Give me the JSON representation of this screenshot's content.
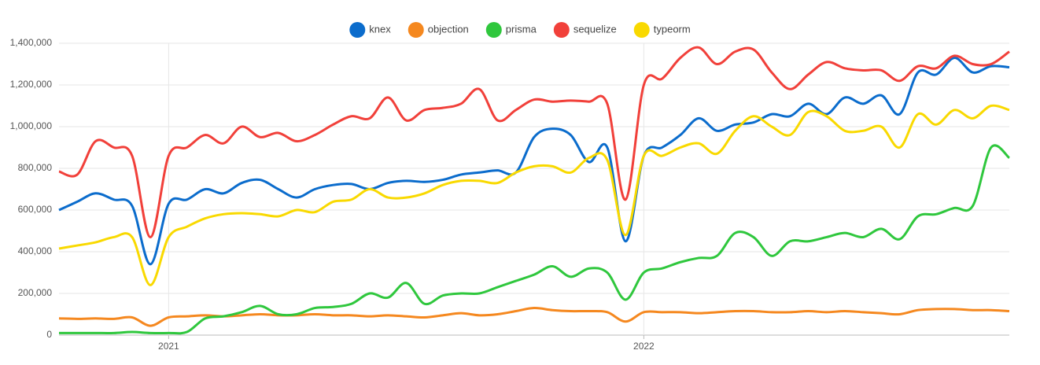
{
  "chart_data": {
    "type": "line",
    "categories": [
      null,
      null,
      null,
      null,
      null,
      null,
      "2021",
      null,
      null,
      null,
      null,
      null,
      null,
      null,
      null,
      null,
      null,
      null,
      null,
      null,
      null,
      null,
      null,
      null,
      null,
      null,
      null,
      null,
      null,
      null,
      null,
      null,
      "2022",
      null,
      null,
      null,
      null,
      null,
      null,
      null,
      null,
      null,
      null,
      null,
      null,
      null,
      null,
      null,
      null,
      null,
      null,
      null,
      null
    ],
    "series": [
      {
        "name": "knex",
        "color": "#0b6ccc",
        "values": [
          600,
          640,
          680,
          650,
          620,
          340,
          630,
          650,
          700,
          680,
          730,
          745,
          700,
          660,
          700,
          720,
          725,
          700,
          730,
          740,
          735,
          745,
          770,
          780,
          790,
          780,
          950,
          990,
          960,
          830,
          900,
          450,
          860,
          900,
          960,
          1040,
          980,
          1010,
          1020,
          1060,
          1050,
          1110,
          1060,
          1140,
          1110,
          1150,
          1060,
          1260,
          1250,
          1330,
          1260,
          1290,
          1285
        ]
      },
      {
        "name": "objection",
        "color": "#f5881f",
        "values": [
          80,
          78,
          80,
          78,
          85,
          45,
          85,
          90,
          95,
          90,
          95,
          100,
          95,
          95,
          100,
          95,
          95,
          90,
          95,
          90,
          85,
          95,
          105,
          95,
          100,
          115,
          130,
          120,
          115,
          115,
          110,
          65,
          110,
          110,
          110,
          105,
          110,
          115,
          115,
          110,
          110,
          115,
          110,
          115,
          110,
          105,
          100,
          120,
          125,
          125,
          120,
          120,
          115
        ]
      },
      {
        "name": "prisma",
        "color": "#2fc73d",
        "values": [
          10,
          10,
          10,
          10,
          15,
          10,
          10,
          15,
          80,
          90,
          110,
          140,
          100,
          100,
          130,
          135,
          150,
          200,
          180,
          250,
          150,
          190,
          200,
          200,
          230,
          260,
          290,
          330,
          280,
          320,
          300,
          170,
          300,
          320,
          350,
          370,
          380,
          490,
          470,
          380,
          450,
          450,
          470,
          490,
          470,
          510,
          460,
          570,
          580,
          610,
          620,
          900,
          850
        ]
      },
      {
        "name": "sequelize",
        "color": "#f1403a",
        "values": [
          785,
          770,
          930,
          900,
          860,
          470,
          860,
          900,
          960,
          920,
          1000,
          950,
          970,
          930,
          960,
          1010,
          1050,
          1040,
          1140,
          1030,
          1080,
          1090,
          1110,
          1180,
          1030,
          1080,
          1130,
          1120,
          1125,
          1120,
          1110,
          650,
          1200,
          1230,
          1330,
          1380,
          1300,
          1360,
          1370,
          1260,
          1180,
          1250,
          1310,
          1280,
          1270,
          1270,
          1220,
          1290,
          1280,
          1340,
          1300,
          1300,
          1360
        ]
      },
      {
        "name": "typeorm",
        "color": "#f9d900",
        "values": [
          415,
          430,
          445,
          470,
          470,
          240,
          470,
          520,
          560,
          580,
          585,
          580,
          570,
          600,
          590,
          640,
          650,
          700,
          660,
          660,
          680,
          720,
          740,
          740,
          730,
          780,
          810,
          810,
          780,
          850,
          840,
          480,
          860,
          860,
          900,
          920,
          870,
          980,
          1050,
          1000,
          960,
          1070,
          1050,
          980,
          980,
          1000,
          900,
          1060,
          1010,
          1080,
          1040,
          1100,
          1080
        ]
      }
    ],
    "ylim": [
      0,
      1400000
    ],
    "yticks": [
      0,
      {
        "value": 200000,
        "label": "200,000"
      },
      {
        "value": 400000,
        "label": "400,000"
      },
      {
        "value": 600000,
        "label": "600,000"
      },
      {
        "value": 800000,
        "label": "800,000"
      },
      {
        "value": 1000000,
        "label": "1,000,000"
      },
      {
        "value": 1200000,
        "label": "1,200,000"
      },
      {
        "value": 1400000,
        "label": "1,400,000"
      }
    ],
    "value_scale_note_free": null,
    "grid": true,
    "legend": "top"
  }
}
